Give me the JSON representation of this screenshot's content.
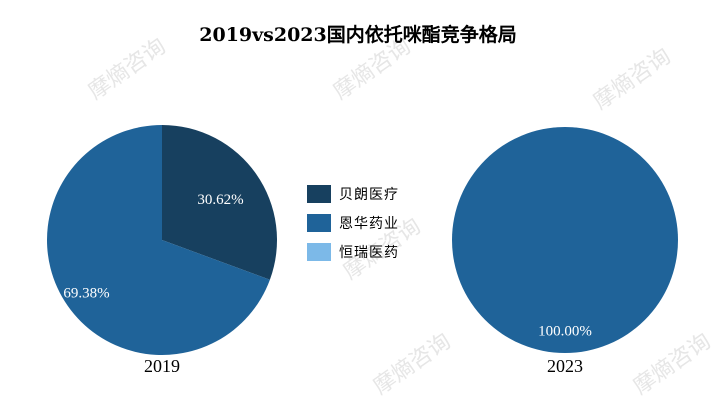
{
  "chart_data": {
    "type": "pie",
    "title": "2019vs2023国内依托咪酯竞争格局",
    "legend_position": "center",
    "series_names": [
      "贝朗医疗",
      "恩华药业",
      "恒瑞医药"
    ],
    "colors": [
      "#17405f",
      "#1f6399",
      "#7cb9e8"
    ],
    "pies": [
      {
        "label": "2019",
        "values": [
          30.62,
          69.38,
          0
        ],
        "value_labels": [
          "30.62%",
          "69.38%",
          ""
        ]
      },
      {
        "label": "2023",
        "values": [
          0,
          100.0,
          0
        ],
        "value_labels": [
          "",
          "100.00%",
          ""
        ]
      }
    ]
  },
  "watermark": "摩熵咨询"
}
